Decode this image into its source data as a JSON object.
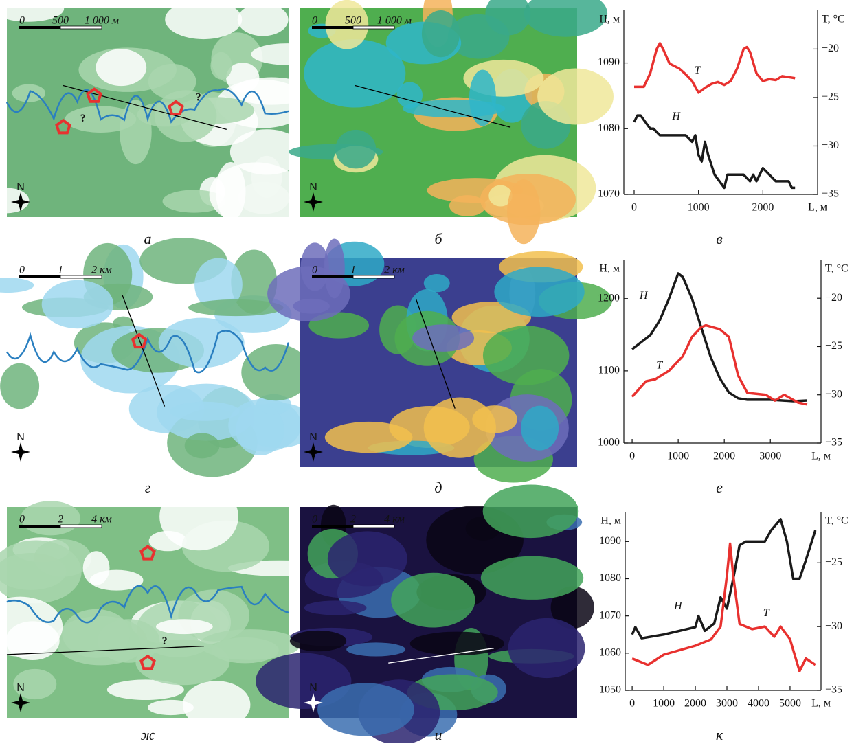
{
  "captions": [
    "а",
    "б",
    "в",
    "г",
    "д",
    "е",
    "ж",
    "и",
    "к"
  ],
  "maps": [
    {
      "scale": [
        "0",
        "500",
        "1 000 м"
      ],
      "marks": [
        "?",
        "?"
      ],
      "north": "N"
    },
    {
      "scale": [
        "0",
        "500",
        "1 000 м"
      ],
      "north": "N"
    },
    {
      "scale": [
        "0",
        "1",
        "2 км"
      ],
      "north": "N"
    },
    {
      "scale": [
        "0",
        "1",
        "2 км"
      ],
      "north": "N"
    },
    {
      "scale": [
        "0",
        "2",
        "4 км"
      ],
      "marks": [
        "?"
      ],
      "north": "N"
    },
    {
      "scale": [
        "0",
        "2",
        "4 км"
      ],
      "north": "N"
    }
  ],
  "chart_data": [
    {
      "type": "line",
      "y_label": "H, м",
      "y2_label": "T, °C",
      "x_label": "L, м",
      "xlim": [
        -160,
        2850
      ],
      "xticks": [
        0,
        1000,
        2000
      ],
      "ylim": [
        1070,
        1098
      ],
      "yticks": [
        1070,
        1080,
        1090
      ],
      "y2lim": [
        -35,
        -16
      ],
      "y2ticks": [
        {
          "value": -35,
          "label": "−35"
        },
        {
          "value": -30,
          "label": "−30"
        },
        {
          "value": -25,
          "label": "−25"
        },
        {
          "value": -20,
          "label": "−20"
        }
      ],
      "series": [
        {
          "name": "H",
          "color": "#1a1a1a",
          "x": [
            0,
            50,
            100,
            250,
            300,
            400,
            800,
            900,
            950,
            1000,
            1050,
            1100,
            1150,
            1250,
            1400,
            1450,
            1700,
            1800,
            1850,
            1900,
            2000,
            2100,
            2200,
            2400,
            2450,
            2500
          ],
          "values": [
            1081,
            1082,
            1082,
            1080,
            1080,
            1079,
            1079,
            1078,
            1079,
            1076,
            1075,
            1078,
            1076,
            1073,
            1071,
            1073,
            1073,
            1072,
            1073,
            1072,
            1074,
            1073,
            1072,
            1072,
            1071,
            1071
          ]
        },
        {
          "name": "T",
          "color": "#e8312f",
          "axis": "y2",
          "x": [
            0,
            150,
            250,
            350,
            400,
            450,
            550,
            700,
            800,
            900,
            1000,
            1100,
            1200,
            1300,
            1400,
            1500,
            1600,
            1700,
            1750,
            1800,
            1900,
            2000,
            2100,
            2200,
            2300,
            2400,
            2500
          ],
          "values": [
            -23.9,
            -23.9,
            -22.5,
            -20,
            -19.4,
            -20,
            -21.5,
            -22,
            -22.6,
            -23.3,
            -24.5,
            -24,
            -23.6,
            -23.4,
            -23.7,
            -23.3,
            -22,
            -20,
            -19.8,
            -20.3,
            -22.5,
            -23.3,
            -23.1,
            -23.2,
            -22.8,
            -22.9,
            -23
          ]
        }
      ]
    },
    {
      "type": "line",
      "y_label": "H, м",
      "y2_label": "T, °C",
      "x_label": "L, м",
      "xlim": [
        -180,
        4100
      ],
      "xticks": [
        0,
        1000,
        2000,
        3000
      ],
      "ylim": [
        1000,
        1254
      ],
      "yticks": [
        1000,
        1100,
        1200
      ],
      "y2lim": [
        -35,
        -16
      ],
      "y2ticks": [
        {
          "value": -35,
          "label": "−35"
        },
        {
          "value": -30,
          "label": "−30"
        },
        {
          "value": -25,
          "label": "−25"
        },
        {
          "value": -20,
          "label": "−20"
        }
      ],
      "series": [
        {
          "name": "H",
          "color": "#1a1a1a",
          "x": [
            0,
            200,
            400,
            600,
            800,
            1000,
            1100,
            1300,
            1500,
            1700,
            1900,
            2100,
            2300,
            2500,
            3000,
            3500,
            3800
          ],
          "values": [
            1130,
            1140,
            1150,
            1170,
            1200,
            1235,
            1230,
            1200,
            1160,
            1120,
            1090,
            1070,
            1062,
            1060,
            1060,
            1058,
            1059
          ]
        },
        {
          "name": "T",
          "color": "#e8312f",
          "axis": "y2",
          "x": [
            0,
            300,
            500,
            800,
            1100,
            1300,
            1500,
            1600,
            1900,
            2100,
            2300,
            2500,
            2900,
            3100,
            3300,
            3600,
            3800
          ],
          "values": [
            -30.2,
            -28.6,
            -28.4,
            -27.5,
            -26,
            -24,
            -23,
            -22.8,
            -23.2,
            -24,
            -28,
            -29.8,
            -30,
            -30.6,
            -30,
            -30.8,
            -31
          ]
        }
      ]
    },
    {
      "type": "line",
      "y_label": "H, м",
      "y2_label": "T, °C",
      "x_label": "L, м",
      "xlim": [
        -220,
        5980
      ],
      "xticks": [
        0,
        1000,
        2000,
        3000,
        4000,
        5000
      ],
      "ylim": [
        1050,
        1098
      ],
      "yticks": [
        1050,
        1060,
        1070,
        1080,
        1090
      ],
      "y2lim": [
        -35,
        -21
      ],
      "y2ticks": [
        {
          "value": -35,
          "label": "−35"
        },
        {
          "value": -30,
          "label": "−30"
        },
        {
          "value": -25,
          "label": "−25"
        }
      ],
      "series": [
        {
          "name": "H",
          "color": "#1a1a1a",
          "x": [
            0,
            100,
            300,
            1000,
            2000,
            2100,
            2300,
            2600,
            2800,
            3000,
            3200,
            3400,
            3600,
            4200,
            4400,
            4700,
            4900,
            5100,
            5300,
            5500,
            5800
          ],
          "values": [
            1065,
            1067,
            1064,
            1065,
            1067,
            1070,
            1066,
            1068,
            1075,
            1072,
            1080,
            1089,
            1090,
            1090,
            1093,
            1096,
            1090,
            1080,
            1080,
            1085,
            1093
          ]
        },
        {
          "name": "T",
          "color": "#e8312f",
          "axis": "y2",
          "x": [
            0,
            500,
            1000,
            2000,
            2500,
            2800,
            3000,
            3100,
            3200,
            3400,
            3800,
            4200,
            4500,
            4700,
            5000,
            5300,
            5500,
            5800
          ],
          "values": [
            -32.5,
            -33,
            -32.2,
            -31.5,
            -31,
            -30,
            -26,
            -23.5,
            -26,
            -29.8,
            -30.2,
            -30,
            -30.8,
            -30,
            -31,
            -33.5,
            -32.5,
            -33
          ]
        }
      ]
    }
  ]
}
